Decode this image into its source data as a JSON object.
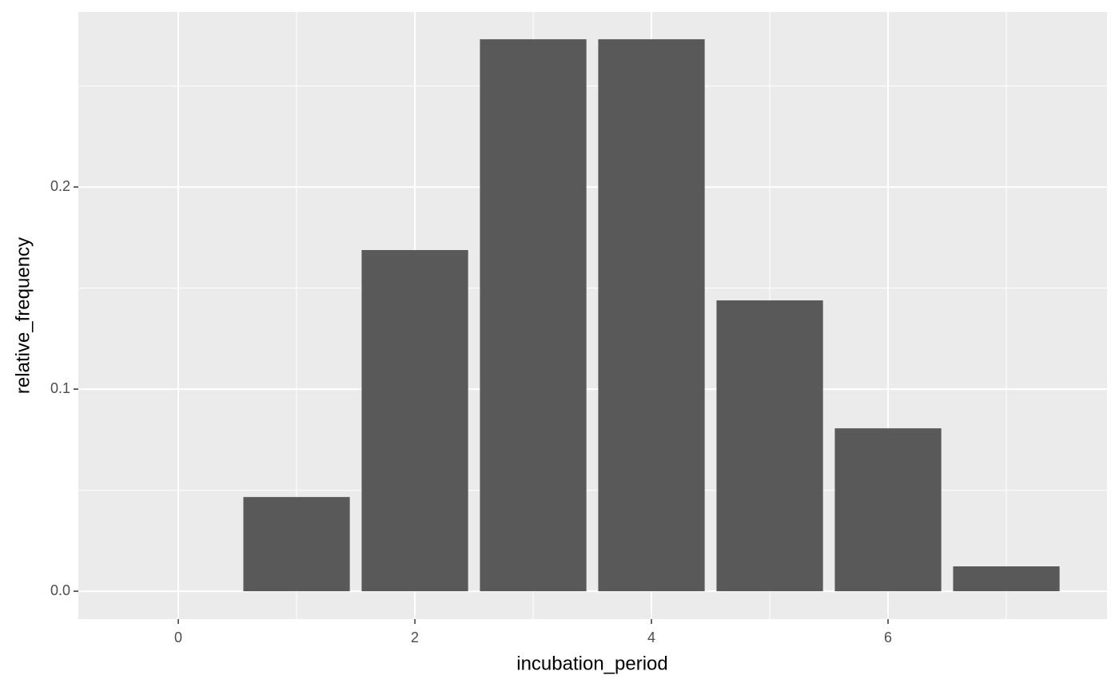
{
  "chart_data": {
    "type": "bar",
    "x_label": "incubation_period",
    "y_label": "relative_frequency",
    "x": [
      1,
      2,
      3,
      4,
      5,
      6,
      7
    ],
    "values": [
      0.0466,
      0.1688,
      0.2731,
      0.2731,
      0.1439,
      0.0806,
      0.0123
    ],
    "bar_width": 0.9,
    "color": "#595959",
    "xlim": [
      -0.845,
      7.851
    ],
    "xticks": [
      0,
      2,
      4,
      6
    ],
    "x_minor_grid": [
      1,
      3,
      5,
      7
    ],
    "ylim": [
      -0.0138,
      0.2866
    ],
    "yticks": [
      {
        "value": 0,
        "label": "0.0"
      },
      {
        "value": 0.1,
        "label": "0.1"
      },
      {
        "value": 0.2,
        "label": "0.2"
      }
    ],
    "y_minor_grid": [
      0.05,
      0.15,
      0.25
    ],
    "grid": true
  }
}
